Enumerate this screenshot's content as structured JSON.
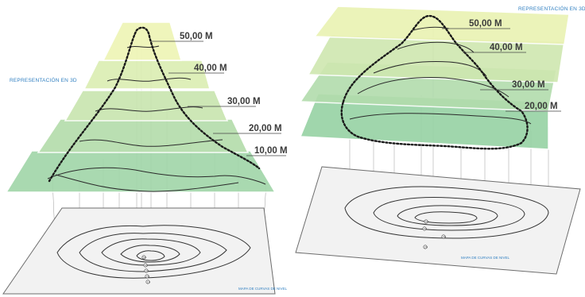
{
  "left": {
    "caption_3d": "REPRESENTACIÓN EN 3D",
    "caption_map": "MAPA DE CURVAS DE NIVEL",
    "levels": [
      "50,00 M",
      "40,00 M",
      "30,00 M",
      "20,00 M",
      "10,00 M"
    ],
    "map_tags": [
      "50",
      "40",
      "30",
      "20",
      "10"
    ]
  },
  "right": {
    "caption_3d": "REPRESENTACIÓN EN 3D",
    "caption_map": "MAPA DE CURVAS DE NIVEL",
    "levels": [
      "50,00 M",
      "40,00 M",
      "30,00 M",
      "20,00 M"
    ],
    "map_tags": [
      "50",
      "40",
      "30",
      "20"
    ]
  },
  "colors": {
    "plane_top": "#eef3b4",
    "plane_bottom": "#9ed4a8",
    "map_plane": "#f1f1f1",
    "caption": "#2f7fc1",
    "terrain_line": "#1e1e1e"
  }
}
